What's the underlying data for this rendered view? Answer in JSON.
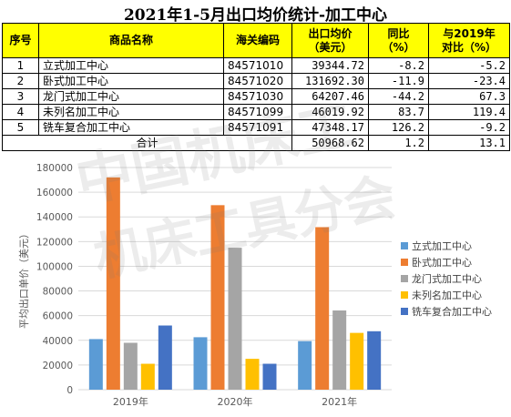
{
  "title": "2021年1-5月出口均价统计-加工中心",
  "table": {
    "headers": [
      "序号",
      "商品名称",
      "海关编码",
      "出口均价\n（美元）",
      "同比\n（%）",
      "与2019年\n对比（%）"
    ],
    "rows": [
      {
        "no": "1",
        "name": "立式加工中心",
        "code": "84571010",
        "price": "39344.72",
        "yoy": "-8.2",
        "vs2019": "-5.2"
      },
      {
        "no": "2",
        "name": "卧式加工中心",
        "code": "84571020",
        "price": "131692.30",
        "yoy": "-11.9",
        "vs2019": "-23.4"
      },
      {
        "no": "3",
        "name": "龙门式加工中心",
        "code": "84571030",
        "price": "64207.46",
        "yoy": "-44.2",
        "vs2019": "67.3"
      },
      {
        "no": "4",
        "name": "未列名加工中心",
        "code": "84571099",
        "price": "46019.92",
        "yoy": "83.7",
        "vs2019": "119.4"
      },
      {
        "no": "5",
        "name": "铣车复合加工中心",
        "code": "84571091",
        "price": "47348.17",
        "yoy": "126.2",
        "vs2019": "-9.2"
      }
    ],
    "total": {
      "label": "合计",
      "price": "50968.62",
      "yoy": "1.2",
      "vs2019": "13.1"
    }
  },
  "watermark": {
    "line1": "中国机床工",
    "line2": "机床工具分会"
  },
  "chart_data": {
    "type": "bar",
    "categories": [
      "2019年",
      "2020年",
      "2021年"
    ],
    "series": [
      {
        "name": "立式加工中心",
        "color": "#5b9bd5",
        "values": [
          41000,
          42500,
          39344.72
        ]
      },
      {
        "name": "卧式加工中心",
        "color": "#ed7d31",
        "values": [
          172000,
          149500,
          131692.3
        ]
      },
      {
        "name": "龙门式加工中心",
        "color": "#a5a5a5",
        "values": [
          38000,
          115000,
          64207.46
        ]
      },
      {
        "name": "未列名加工中心",
        "color": "#ffc000",
        "values": [
          21000,
          25000,
          46019.92
        ]
      },
      {
        "name": "铣车复合加工中心",
        "color": "#4472c4",
        "values": [
          52000,
          21000,
          47348.17
        ]
      }
    ],
    "ylabel": "平均出口单价（美元）",
    "ylim": [
      0,
      180000
    ],
    "yticks": [
      0,
      20000,
      40000,
      60000,
      80000,
      100000,
      120000,
      140000,
      160000,
      180000
    ],
    "grid": true,
    "legend": "right"
  }
}
